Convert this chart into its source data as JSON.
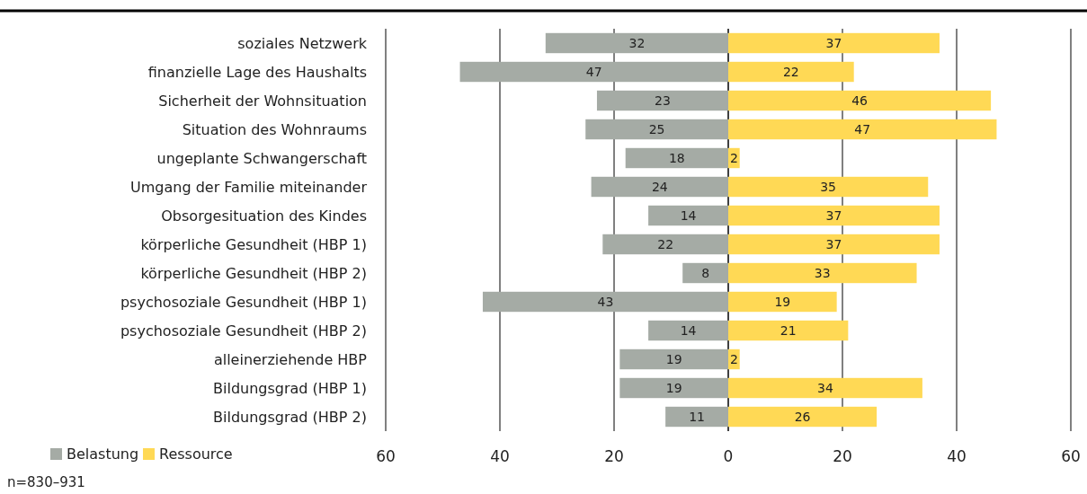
{
  "chart_data": {
    "type": "bar",
    "orientation": "horizontal",
    "categories": [
      "soziales Netzwerk",
      "finanzielle Lage des Haushalts",
      "Sicherheit der Wohnsituation",
      "Situation des Wohnraums",
      "ungeplante Schwangerschaft",
      "Umgang der Familie miteinander",
      "Obsorgesituation des Kindes",
      "körperliche Gesundheit (HBP 1)",
      "körperliche Gesundheit (HBP 2)",
      "psychosoziale Gesundheit (HBP 1)",
      "psychosoziale Gesundheit (HBP 2)",
      "alleinerziehende HBP",
      "Bildungsgrad (HBP 1)",
      "Bildungsgrad (HBP 2)"
    ],
    "series": [
      {
        "name": "Belastung",
        "color": "#a5aba5",
        "values": [
          32,
          47,
          23,
          25,
          18,
          24,
          14,
          22,
          8,
          43,
          14,
          19,
          19,
          11
        ],
        "base": [
          -32,
          -47,
          -23,
          -25,
          -18,
          -24,
          -14,
          -22,
          -8,
          -43,
          -14,
          -19,
          -19,
          -11
        ]
      },
      {
        "name": "Ressource",
        "color": "#ffd955",
        "values": [
          37,
          22,
          46,
          47,
          2,
          35,
          37,
          37,
          33,
          19,
          21,
          2,
          34,
          26
        ]
      }
    ],
    "data_labels": true,
    "xlim": [
      -60,
      60
    ],
    "xticks": [
      {
        "value": -60,
        "label": "60"
      },
      {
        "value": -40,
        "label": "40"
      },
      {
        "value": -20,
        "label": "20"
      },
      0,
      20,
      40,
      60
    ],
    "grid": "x",
    "legend": "bottom left",
    "annotations": [
      "n=830–931"
    ]
  }
}
